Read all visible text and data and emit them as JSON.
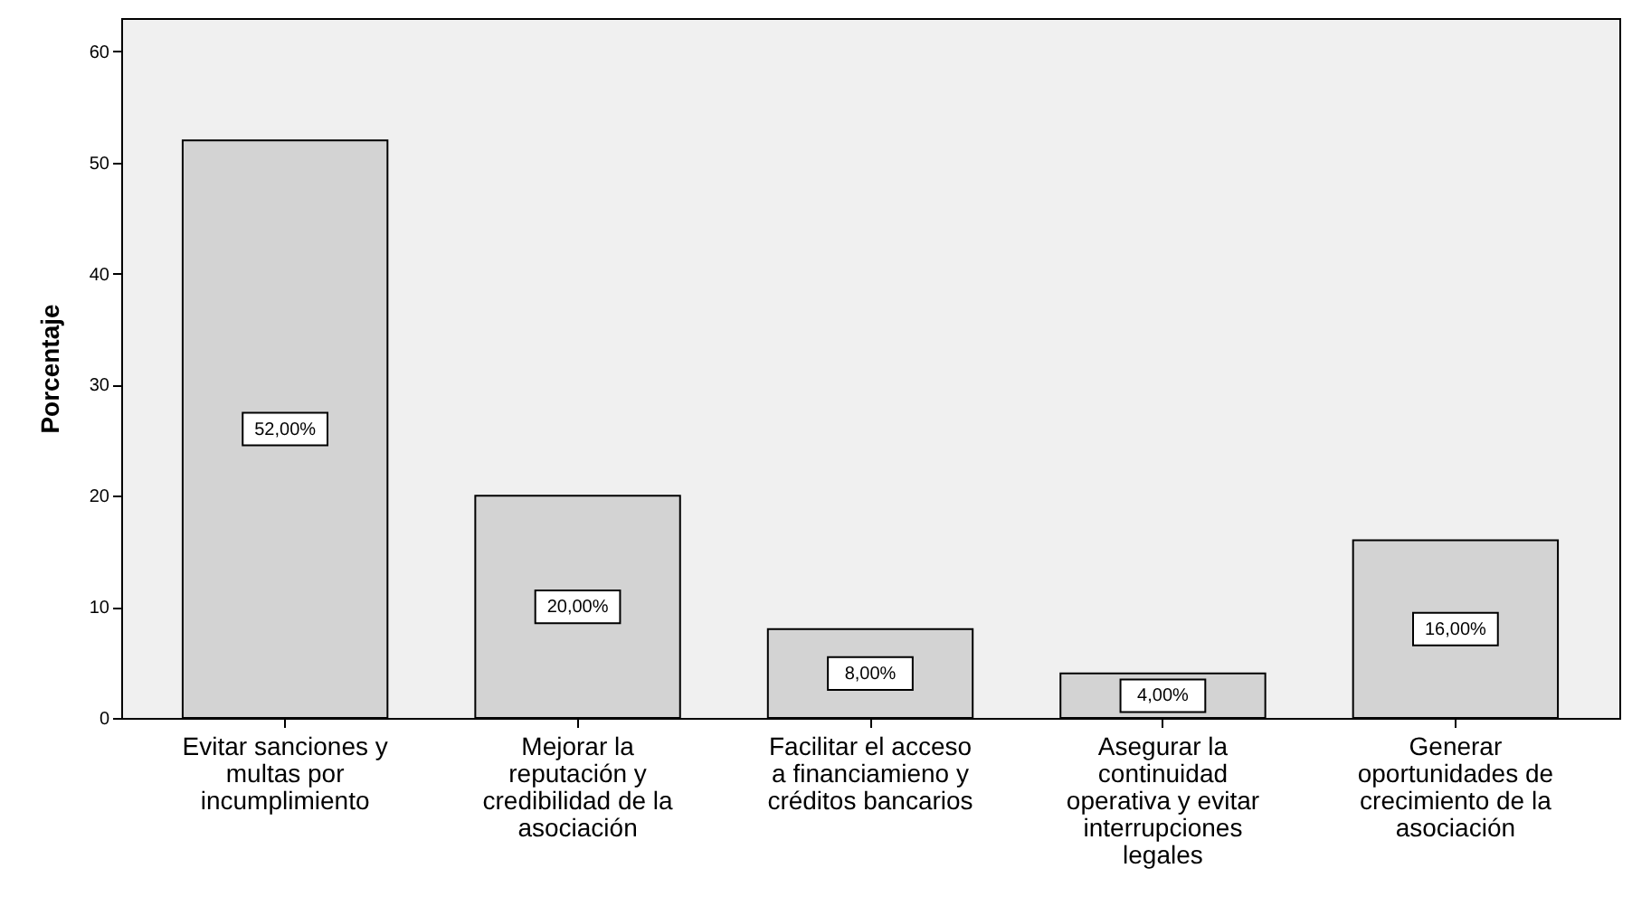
{
  "chart_data": {
    "type": "bar",
    "ylabel": "Porcentaje",
    "categories": [
      "Evitar sanciones y multas por incumplimiento",
      "Mejorar la reputación y credibilidad de la asociación",
      "Facilitar el acceso a financiamieno y créditos bancarios",
      "Asegurar la continuidad operativa y evitar interrupciones legales",
      "Generar oportunidades de crecimiento de la asociación"
    ],
    "values": [
      52,
      20,
      8,
      4,
      16
    ],
    "value_labels": [
      "52,00%",
      "20,00%",
      "8,00%",
      "4,00%",
      "16,00%"
    ],
    "color": "#d3d3d3",
    "ylim": [
      0,
      63
    ],
    "yticks": [
      0,
      10,
      20,
      30,
      40,
      50,
      60
    ],
    "grid": false
  }
}
